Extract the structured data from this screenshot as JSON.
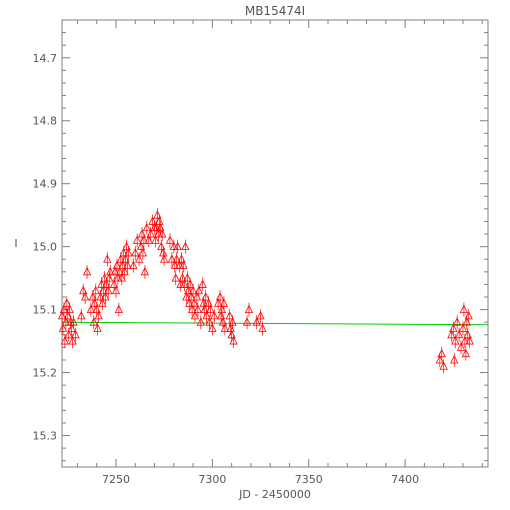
{
  "chart_data": {
    "type": "scatter",
    "title": "MB15474I",
    "xlabel": "JD - 2450000",
    "ylabel": "I",
    "xlim": [
      7222,
      7443
    ],
    "ylim": [
      15.35,
      14.64
    ],
    "y_inverted": true,
    "grid": false,
    "x_ticks": [
      {
        "value": 7250,
        "label": "7250"
      },
      {
        "value": 7300,
        "label": "7300"
      },
      {
        "value": 7350,
        "label": "7350"
      },
      {
        "value": 7400,
        "label": "7400"
      }
    ],
    "y_ticks": [
      {
        "value": 14.7,
        "label": "14.7"
      },
      {
        "value": 14.8,
        "label": "14.8"
      },
      {
        "value": 14.9,
        "label": "14.9"
      },
      {
        "value": 15.0,
        "label": "15.0"
      },
      {
        "value": 15.1,
        "label": "15.1"
      },
      {
        "value": 15.2,
        "label": "15.2"
      },
      {
        "value": 15.3,
        "label": "15.3"
      }
    ],
    "series": [
      {
        "marker": "triangle-open",
        "color": "#ff0000",
        "points": [
          [
            7222,
            15.11
          ],
          [
            7222.5,
            15.13
          ],
          [
            7223,
            15.1
          ],
          [
            7223.5,
            15.15
          ],
          [
            7224,
            15.12
          ],
          [
            7224.5,
            15.09
          ],
          [
            7225,
            15.11
          ],
          [
            7225.5,
            15.14
          ],
          [
            7226,
            15.1
          ],
          [
            7226.5,
            15.12
          ],
          [
            7227,
            15.13
          ],
          [
            7227.5,
            15.15
          ],
          [
            7228,
            15.12
          ],
          [
            7229,
            15.14
          ],
          [
            7232,
            15.11
          ],
          [
            7233,
            15.07
          ],
          [
            7234,
            15.08
          ],
          [
            7235,
            15.04
          ],
          [
            7237,
            15.1
          ],
          [
            7238,
            15.08
          ],
          [
            7238.5,
            15.12
          ],
          [
            7239,
            15.09
          ],
          [
            7239.5,
            15.07
          ],
          [
            7240,
            15.1
          ],
          [
            7240.5,
            15.13
          ],
          [
            7241,
            15.11
          ],
          [
            7242,
            15.08
          ],
          [
            7242.5,
            15.06
          ],
          [
            7243,
            15.09
          ],
          [
            7243.5,
            15.07
          ],
          [
            7244,
            15.05
          ],
          [
            7244.5,
            15.08
          ],
          [
            7245,
            15.06
          ],
          [
            7245.5,
            15.02
          ],
          [
            7246,
            15.07
          ],
          [
            7246.5,
            15.05
          ],
          [
            7247,
            15.04
          ],
          [
            7249,
            15.06
          ],
          [
            7249.5,
            15.04
          ],
          [
            7250,
            15.07
          ],
          [
            7250.5,
            15.03
          ],
          [
            7251,
            15.05
          ],
          [
            7251.5,
            15.1
          ],
          [
            7252,
            15.04
          ],
          [
            7252.5,
            15.02
          ],
          [
            7253,
            15.05
          ],
          [
            7253.5,
            15.03
          ],
          [
            7254,
            15.01
          ],
          [
            7254.5,
            15.04
          ],
          [
            7255,
            15.02
          ],
          [
            7255.5,
            15.0
          ],
          [
            7256,
            15.03
          ],
          [
            7256.5,
            15.01
          ],
          [
            7259,
            15.03
          ],
          [
            7260,
            15.01
          ],
          [
            7261,
            14.99
          ],
          [
            7262,
            15.02
          ],
          [
            7263,
            15.0
          ],
          [
            7263.5,
            14.98
          ],
          [
            7264,
            15.01
          ],
          [
            7264.5,
            14.99
          ],
          [
            7265,
            15.04
          ],
          [
            7266,
            14.97
          ],
          [
            7267,
            14.99
          ],
          [
            7268,
            14.98
          ],
          [
            7269,
            14.96
          ],
          [
            7270,
            14.97
          ],
          [
            7270.5,
            14.99
          ],
          [
            7271,
            14.97
          ],
          [
            7271.5,
            14.95
          ],
          [
            7272,
            14.98
          ],
          [
            7272.5,
            14.96
          ],
          [
            7273,
            14.97
          ],
          [
            7273.5,
            15.0
          ],
          [
            7274,
            14.98
          ],
          [
            7274.5,
            15.01
          ],
          [
            7275,
            15.02
          ],
          [
            7278,
            14.99
          ],
          [
            7279,
            15.02
          ],
          [
            7280,
            15.0
          ],
          [
            7280.5,
            15.03
          ],
          [
            7281,
            15.05
          ],
          [
            7281.5,
            15.02
          ],
          [
            7282,
            15.0
          ],
          [
            7283,
            15.03
          ],
          [
            7283.5,
            15.06
          ],
          [
            7284,
            15.02
          ],
          [
            7284.5,
            15.05
          ],
          [
            7285,
            15.03
          ],
          [
            7285.5,
            15.06
          ],
          [
            7286,
            15.0
          ],
          [
            7286.5,
            15.08
          ],
          [
            7287,
            15.05
          ],
          [
            7287.5,
            15.07
          ],
          [
            7288,
            15.09
          ],
          [
            7288.5,
            15.06
          ],
          [
            7289,
            15.08
          ],
          [
            7289.5,
            15.1
          ],
          [
            7290,
            15.07
          ],
          [
            7290.5,
            15.09
          ],
          [
            7291,
            15.11
          ],
          [
            7292,
            15.08
          ],
          [
            7292.5,
            15.1
          ],
          [
            7293,
            15.07
          ],
          [
            7294,
            15.12
          ],
          [
            7295,
            15.06
          ],
          [
            7295.5,
            15.09
          ],
          [
            7296,
            15.1
          ],
          [
            7296.5,
            15.08
          ],
          [
            7297,
            15.11
          ],
          [
            7298,
            15.09
          ],
          [
            7298.5,
            15.12
          ],
          [
            7299,
            15.1
          ],
          [
            7300,
            15.13
          ],
          [
            7301,
            15.11
          ],
          [
            7303,
            15.09
          ],
          [
            7304,
            15.08
          ],
          [
            7304.5,
            15.11
          ],
          [
            7305,
            15.1
          ],
          [
            7305.5,
            15.12
          ],
          [
            7306,
            15.09
          ],
          [
            7306.5,
            15.13
          ],
          [
            7309,
            15.11
          ],
          [
            7309.5,
            15.13
          ],
          [
            7310,
            15.14
          ],
          [
            7310.5,
            15.12
          ],
          [
            7311,
            15.15
          ],
          [
            7318,
            15.12
          ],
          [
            7319,
            15.1
          ],
          [
            7323,
            15.12
          ],
          [
            7325,
            15.11
          ],
          [
            7326,
            15.13
          ],
          [
            7418,
            15.18
          ],
          [
            7419,
            15.17
          ],
          [
            7420,
            15.19
          ],
          [
            7424,
            15.14
          ],
          [
            7425,
            15.13
          ],
          [
            7425.5,
            15.18
          ],
          [
            7426,
            15.15
          ],
          [
            7427,
            15.12
          ],
          [
            7428,
            15.14
          ],
          [
            7429,
            15.16
          ],
          [
            7430,
            15.13
          ],
          [
            7430.5,
            15.1
          ],
          [
            7431,
            15.15
          ],
          [
            7431.5,
            15.17
          ],
          [
            7432,
            15.12
          ],
          [
            7432.5,
            15.14
          ],
          [
            7433,
            15.11
          ],
          [
            7433.5,
            15.15
          ]
        ]
      }
    ],
    "fit_line": {
      "color": "#00cc00",
      "x": [
        7222,
        7443
      ],
      "y": [
        15.12,
        15.124
      ]
    }
  }
}
